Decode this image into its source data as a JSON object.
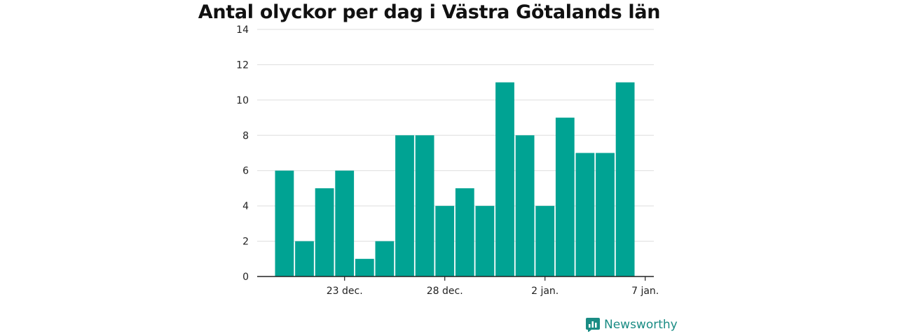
{
  "chart_data": {
    "type": "bar",
    "title": "Antal olyckor per dag i Västra Götalands län",
    "xlabel": "",
    "ylabel": "",
    "categories": [
      "2023-12-20",
      "2023-12-21",
      "2023-12-22",
      "2023-12-23",
      "2023-12-24",
      "2023-12-25",
      "2023-12-26",
      "2023-12-27",
      "2023-12-28",
      "2023-12-29",
      "2023-12-30",
      "2023-12-31",
      "2024-01-01",
      "2024-01-02",
      "2024-01-03",
      "2024-01-04",
      "2024-01-05",
      "2024-01-06"
    ],
    "values": [
      6,
      2,
      5,
      6,
      1,
      2,
      8,
      8,
      4,
      5,
      4,
      11,
      8,
      4,
      9,
      7,
      7,
      11
    ],
    "ylim": [
      0,
      14
    ],
    "yticks": [
      0,
      2,
      4,
      6,
      8,
      10,
      12,
      14
    ],
    "xticks": [
      {
        "date": "2023-12-23",
        "label": "23 dec."
      },
      {
        "date": "2023-12-28",
        "label": "28 dec."
      },
      {
        "date": "2024-01-02",
        "label": "2 jan."
      },
      {
        "date": "2024-01-07",
        "label": "7 jan."
      }
    ],
    "grid": true,
    "bar_color": "#00a393",
    "gridline_color": "#dddddd"
  },
  "brand": {
    "name": "Newsworthy",
    "icon": "newsworthy-logo-icon",
    "color": "#1a8c84"
  }
}
